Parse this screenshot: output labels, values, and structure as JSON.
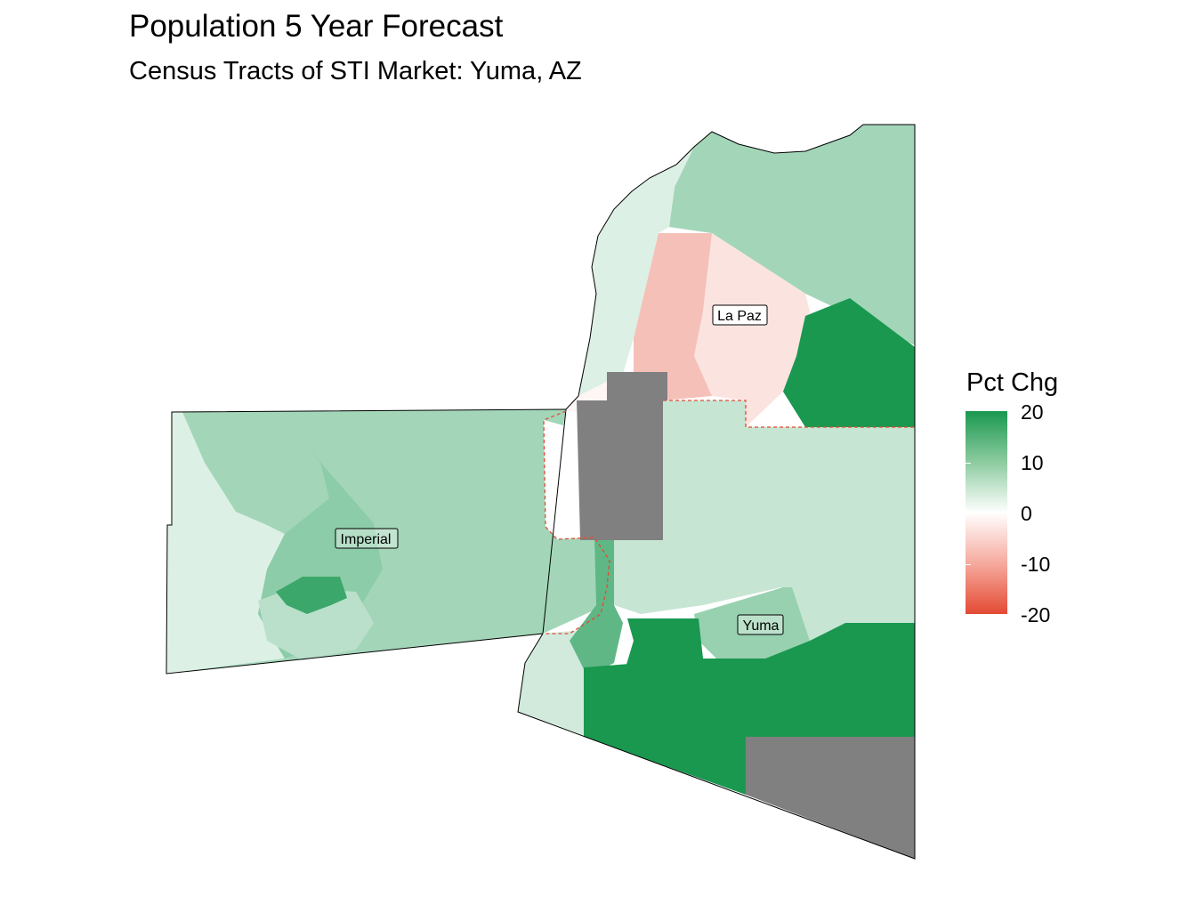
{
  "title": "Population 5 Year Forecast",
  "subtitle": "Census Tracts of STI Market: Yuma, AZ",
  "legend": {
    "title": "Pct Chg",
    "ticks": [
      "20",
      "10",
      "0",
      "-10",
      "-20"
    ],
    "colors": {
      "high": "#1a9850",
      "mid": "#ffffff",
      "low": "#e34a33",
      "na": "#808080"
    }
  },
  "map_labels": {
    "la_paz": "La Paz",
    "imperial": "Imperial",
    "yuma": "Yuma"
  },
  "regions": {
    "imperial_west": 3,
    "imperial_east": 8,
    "imperial_center": 10,
    "imperial_hot": 17,
    "imperial_south": 6,
    "la_paz_river_strip": 3,
    "la_paz_red": -7,
    "la_paz_pink": -3,
    "la_paz_north": 8,
    "la_paz_east_green": 20,
    "la_paz_river_south": -1,
    "yuma_north": 5,
    "yuma_river": 14,
    "yuma_city": 20,
    "yuma_south": 20,
    "yuma_fortuna": 9,
    "yuma_sw": 4
  }
}
